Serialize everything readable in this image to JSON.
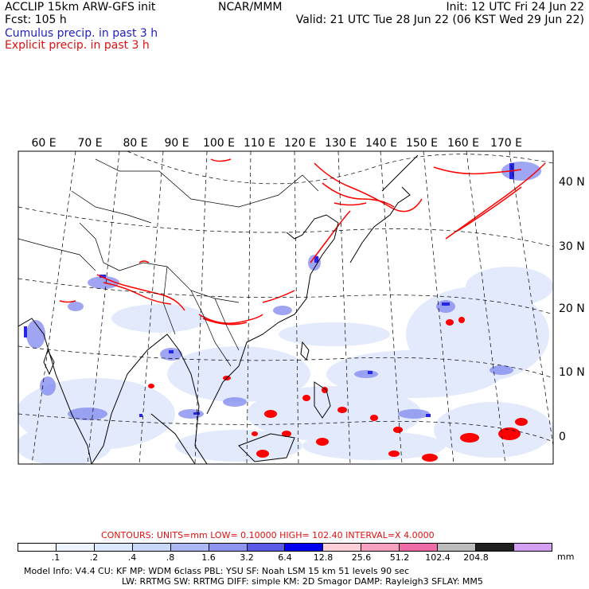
{
  "header": {
    "title_left": "ACCLIP 15km ARW-GFS init",
    "fcst": "Fcst:  105 h",
    "center": "NCAR/MMM",
    "init": "Init: 12 UTC Fri 24 Jun 22",
    "valid": "Valid: 21 UTC Tue 28 Jun 22 (06 KST Wed 29 Jun 22)",
    "legend_cumulus": "Cumulus precip. in past 3 h",
    "legend_explicit": "Explicit precip. in past 3 h"
  },
  "map": {
    "lon_labels": [
      "60 E",
      "70 E",
      "80 E",
      "90 E",
      "100 E",
      "110 E",
      "120 E",
      "130 E",
      "140 E",
      "150 E",
      "160 E",
      "170 E"
    ],
    "lat_labels": [
      "40 N",
      "30 N",
      "20 N",
      "10 N",
      "0"
    ],
    "colors": {
      "cumulus": "#3a3aff",
      "explicit": "#ff0000",
      "coast": "#000000",
      "grid": "#000000"
    }
  },
  "contours": {
    "text": "CONTOURS:  UNITS=mm  LOW= 0.10000      HIGH=  102.40       INTERVAL=X  4.0000"
  },
  "colorbar": {
    "labels": [
      ".1",
      ".2",
      ".4",
      ".8",
      "1.6",
      "3.2",
      "6.4",
      "12.8",
      "25.6",
      "51.2",
      "102.4",
      "204.8"
    ],
    "unit": "mm",
    "colors": [
      "#ffffff",
      "#eef4ff",
      "#dce8fc",
      "#c8d8f8",
      "#aab8f4",
      "#8c96f0",
      "#5a5ae8",
      "#0000ee",
      "#fcd0d8",
      "#f8a0c0",
      "#f06ca8",
      "#bdbdbd",
      "#202020",
      "#d4a0f4"
    ]
  },
  "footer": {
    "line1": "Model Info: V4.4       CU: KF        MP: WDM 6class   PBL: YSU        SF: Noah LSM       15 km    51 levels   90 sec",
    "line2": "LW: RRTMG   SW: RRTMG   DIFF: simple KM: 2D Smagor DAMP: Rayleigh3   SFLAY: MM5"
  }
}
